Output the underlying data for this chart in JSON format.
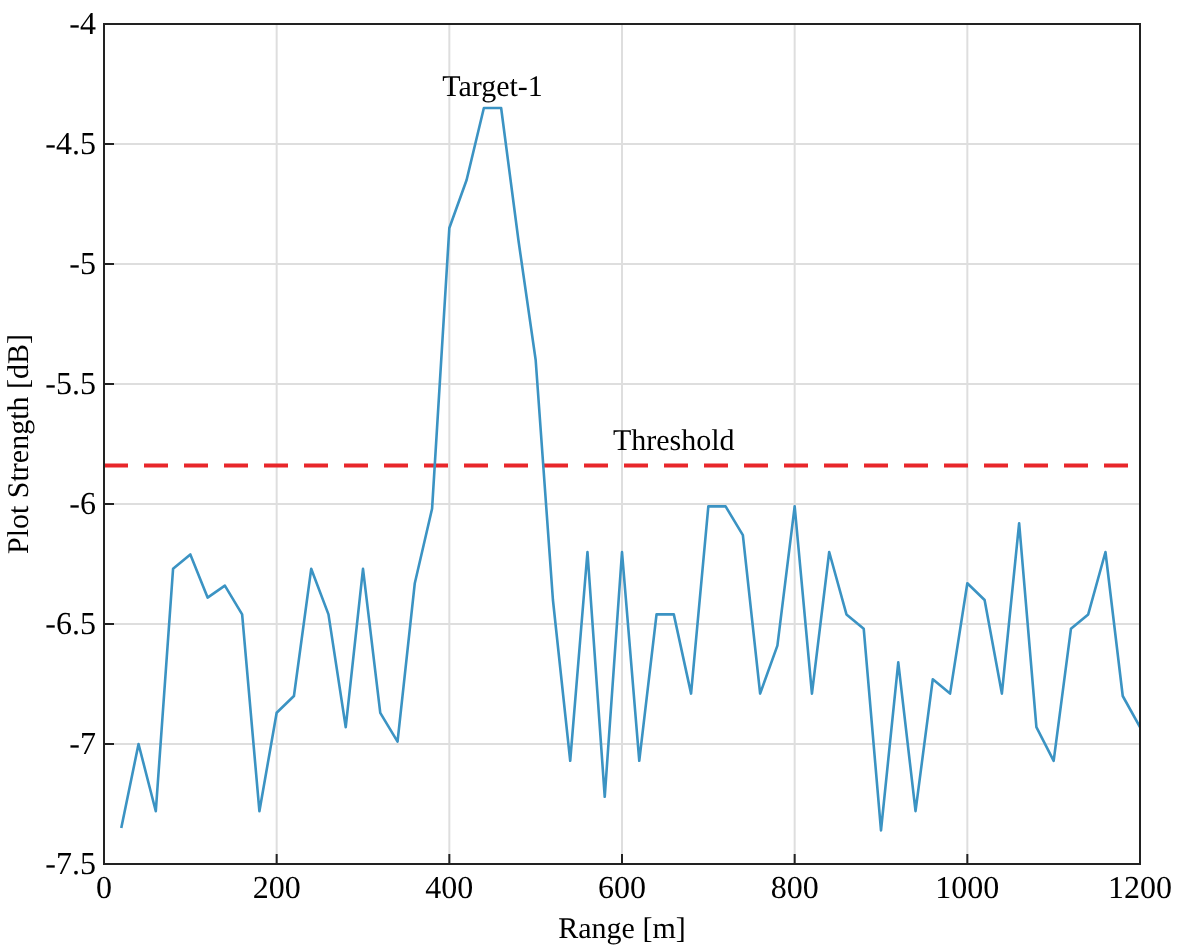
{
  "chart_data": {
    "type": "line",
    "xlabel": "Range [m]",
    "ylabel": "Plot Strength [dB]",
    "x": [
      20,
      40,
      60,
      80,
      100,
      120,
      140,
      160,
      180,
      200,
      220,
      240,
      260,
      280,
      300,
      320,
      340,
      360,
      380,
      400,
      420,
      440,
      460,
      480,
      500,
      520,
      540,
      560,
      580,
      600,
      620,
      640,
      660,
      680,
      700,
      720,
      740,
      760,
      780,
      800,
      820,
      840,
      860,
      880,
      900,
      920,
      940,
      960,
      980,
      1000,
      1020,
      1040,
      1060,
      1080,
      1100,
      1120,
      1140,
      1160,
      1180,
      1200
    ],
    "series": [
      {
        "color": "#3b93c3",
        "values": [
          -7.35,
          -7.0,
          -7.28,
          -6.27,
          -6.21,
          -6.39,
          -6.34,
          -6.46,
          -7.28,
          -6.87,
          -6.8,
          -6.27,
          -6.46,
          -6.93,
          -6.27,
          -6.87,
          -6.99,
          -6.33,
          -6.02,
          -4.85,
          -4.65,
          -4.35,
          -4.35,
          -4.9,
          -5.4,
          -6.4,
          -7.07,
          -6.2,
          -7.22,
          -6.2,
          -7.07,
          -6.46,
          -6.46,
          -6.79,
          -6.01,
          -6.01,
          -6.13,
          -6.79,
          -6.59,
          -6.01,
          -6.79,
          -6.2,
          -6.46,
          -6.52,
          -7.36,
          -6.66,
          -7.28,
          -6.73,
          -6.79,
          -6.33,
          -6.4,
          -6.79,
          -6.08,
          -6.93,
          -7.07,
          -6.52,
          -6.46,
          -6.2,
          -6.8,
          -6.93
        ]
      }
    ],
    "xlim": [
      0,
      1200
    ],
    "xticks": [
      0,
      200,
      400,
      600,
      800,
      1000,
      1200
    ],
    "ylim": [
      -7.5,
      -4
    ],
    "yticks": [
      -7.5,
      -7,
      -6.5,
      -6,
      -5.5,
      -5,
      -4.5,
      -4
    ],
    "grid": true,
    "line_style": "solid",
    "marker": "none",
    "ref_lines": [
      {
        "axis": "y",
        "value": -5.84,
        "label": "Threshold",
        "color": "#e8262a",
        "line_style": "dashed"
      }
    ],
    "annotations": [
      {
        "text": "Target-1",
        "x": 450,
        "y": -4.35
      }
    ]
  }
}
